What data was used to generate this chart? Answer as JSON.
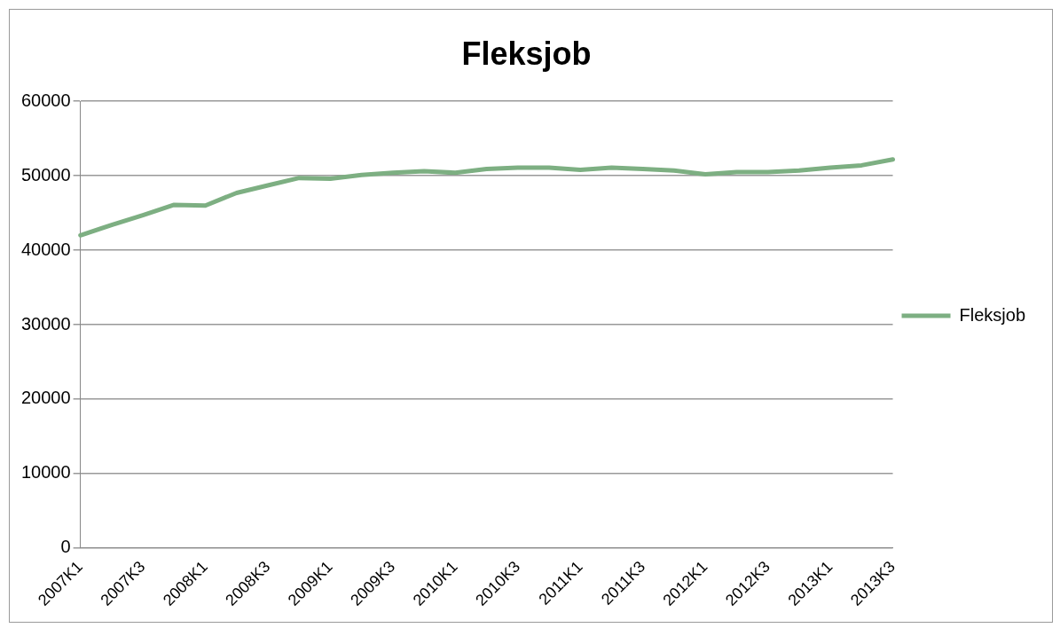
{
  "chart_data": {
    "type": "line",
    "title": "Fleksjob",
    "categories": [
      "2007K1",
      null,
      "2007K3",
      null,
      "2008K1",
      null,
      "2008K3",
      null,
      "2009K1",
      null,
      "2009K3",
      null,
      "2010K1",
      null,
      "2010K3",
      null,
      "2011K1",
      null,
      "2011K3",
      null,
      "2012K1",
      null,
      "2012K3",
      null,
      "2013K1",
      null,
      "2013K3"
    ],
    "series": [
      {
        "name": "Fleksjob",
        "color": "#7daf82",
        "values": [
          42000,
          43400,
          44700,
          46100,
          46000,
          47700,
          48700,
          49700,
          49600,
          50100,
          50400,
          50600,
          50400,
          50900,
          51100,
          51100,
          50800,
          51100,
          50900,
          50700,
          50200,
          50500,
          50500,
          50700,
          51100,
          51400,
          52200
        ]
      }
    ],
    "ylim": [
      0,
      60000
    ],
    "yticks": [
      0,
      10000,
      20000,
      30000,
      40000,
      50000,
      60000
    ],
    "grid": "y",
    "legend": "right",
    "marker": "none",
    "line_style": "solid"
  }
}
